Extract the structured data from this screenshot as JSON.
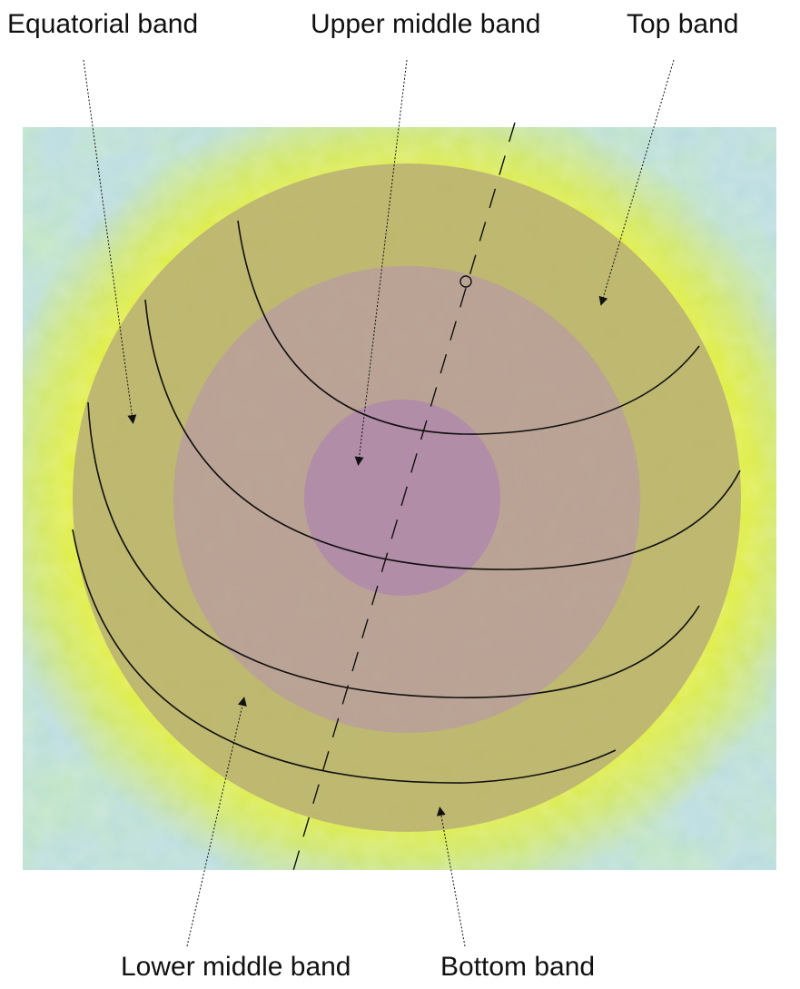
{
  "labels": {
    "equatorial_band": "Equatorial band",
    "upper_middle_band": "Upper middle band",
    "top_band": "Top band",
    "lower_middle_band": "Lower middle band",
    "bottom_band": "Bottom band"
  },
  "colors": {
    "background_blue": "#bcdde0",
    "background_green": "#d6e87a",
    "glow_yellow": "#e4ef3a",
    "disk_outer": "#b8b074",
    "disk_middle": "#b89ea0",
    "disk_inner": "#b08aaa",
    "line": "#111111"
  }
}
